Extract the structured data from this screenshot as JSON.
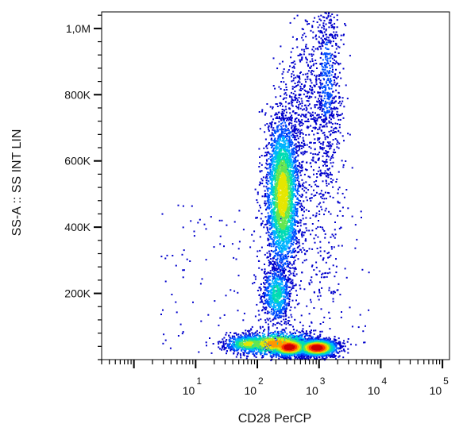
{
  "chart_data": {
    "type": "scatter",
    "subtype": "flow-cytometry-density-dot-plot",
    "xlabel": "CD28 PerCP",
    "ylabel": "SS-A :: SS INT LIN",
    "x_scale": "log",
    "y_scale": "linear",
    "xlim": [
      0.3,
      130000
    ],
    "ylim": [
      0,
      1050000
    ],
    "x_ticks": [
      {
        "value": 10,
        "base": "10",
        "exp": "1"
      },
      {
        "value": 100,
        "base": "10",
        "exp": "2"
      },
      {
        "value": 1000,
        "base": "10",
        "exp": "3"
      },
      {
        "value": 10000,
        "base": "10",
        "exp": "4"
      },
      {
        "value": 100000,
        "base": "10",
        "exp": "5"
      }
    ],
    "y_ticks": [
      {
        "value": 200000,
        "label": "200K"
      },
      {
        "value": 400000,
        "label": "400K"
      },
      {
        "value": 600000,
        "label": "600K"
      },
      {
        "value": 800000,
        "label": "800K"
      },
      {
        "value": 1000000,
        "label": "1,0M"
      }
    ],
    "grid": false,
    "legend": "none",
    "color_scale": [
      "#0000cc",
      "#0050ff",
      "#00b4ff",
      "#00dcb4",
      "#64e650",
      "#e6e600",
      "#ff9600",
      "#ff3200",
      "#cc0000"
    ],
    "populations": [
      {
        "x_center": 320,
        "y_center": 40000,
        "x_spread_decades": 0.16,
        "y_spread": 14000,
        "count": 1500,
        "peak_density": 1.0
      },
      {
        "x_center": 900,
        "y_center": 38000,
        "x_spread_decades": 0.17,
        "y_spread": 13000,
        "count": 1800,
        "peak_density": 1.0
      },
      {
        "x_center": 200,
        "y_center": 50000,
        "x_spread_decades": 0.35,
        "y_spread": 20000,
        "count": 900,
        "peak_density": 0.75
      },
      {
        "x_center": 70,
        "y_center": 50000,
        "x_spread_decades": 0.2,
        "y_spread": 14000,
        "count": 500,
        "peak_density": 0.6
      },
      {
        "x_center": 250,
        "y_center": 500000,
        "x_spread_decades": 0.14,
        "y_spread": 120000,
        "count": 3200,
        "peak_density": 0.65
      },
      {
        "x_center": 200,
        "y_center": 200000,
        "x_spread_decades": 0.12,
        "y_spread": 45000,
        "count": 700,
        "peak_density": 0.4
      },
      {
        "x_center": 1300,
        "y_center": 850000,
        "x_spread_decades": 0.12,
        "y_spread": 150000,
        "count": 700,
        "peak_density": 0.15
      },
      {
        "x_center": 500,
        "y_center": 800000,
        "x_spread_decades": 0.14,
        "y_spread": 130000,
        "count": 350,
        "peak_density": 0.1
      },
      {
        "x_center": 1000,
        "y_center": 500000,
        "x_spread_decades": 0.2,
        "y_spread": 200000,
        "count": 300,
        "peak_density": 0.08
      }
    ]
  }
}
